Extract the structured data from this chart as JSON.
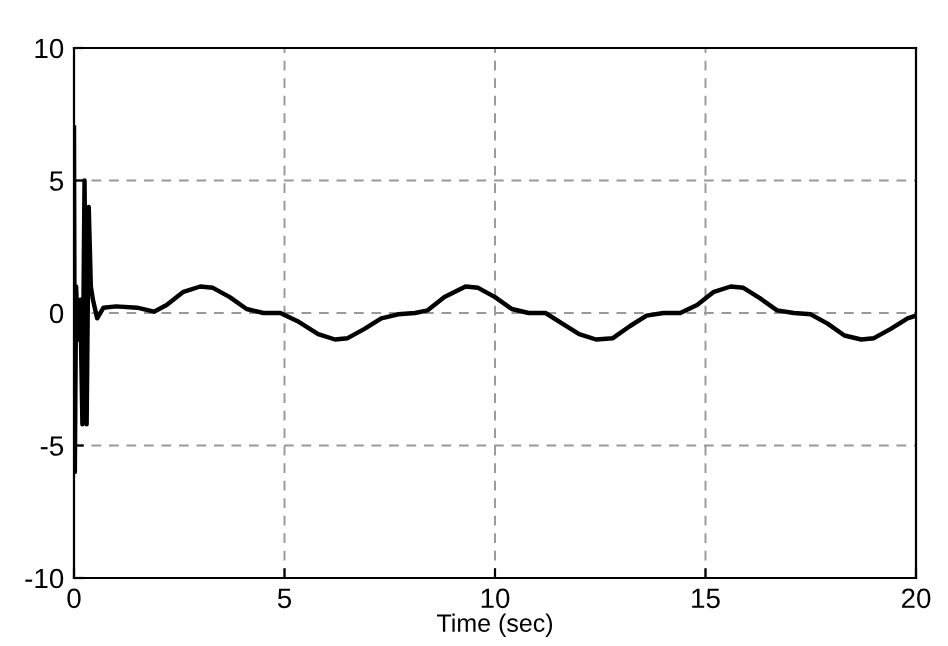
{
  "chart_data": {
    "type": "line",
    "xlabel": "Time (sec)",
    "xlim": [
      0,
      20
    ],
    "ylim": [
      -10,
      10
    ],
    "xticks": [
      0,
      5,
      10,
      15,
      20
    ],
    "yticks": [
      -10,
      -5,
      0,
      5,
      10
    ],
    "grid": true,
    "legend": false,
    "series": [
      {
        "color": "#000000",
        "x": [
          0,
          0.02,
          0.05,
          0.1,
          0.15,
          0.2,
          0.25,
          0.3,
          0.35,
          0.4,
          0.45,
          0.55,
          0.7,
          1.0,
          1.5,
          1.9,
          2.2,
          2.6,
          3.0,
          3.3,
          3.7,
          4.1,
          4.5,
          4.9,
          5.3,
          5.8,
          6.2,
          6.5,
          6.9,
          7.3,
          7.7,
          8.1,
          8.4,
          8.8,
          9.3,
          9.6,
          10.0,
          10.4,
          10.8,
          11.2,
          11.6,
          12.0,
          12.4,
          12.8,
          13.2,
          13.6,
          14.0,
          14.4,
          14.8,
          15.2,
          15.6,
          15.9,
          16.3,
          16.7,
          17.1,
          17.5,
          17.9,
          18.3,
          18.7,
          19.0,
          19.4,
          19.8,
          20
        ],
        "values": [
          7,
          -6,
          1,
          -1,
          0.5,
          -4.2,
          5,
          -4.2,
          4,
          1,
          0.5,
          -0.2,
          0.2,
          0.25,
          0.2,
          0.05,
          0.3,
          0.8,
          1.0,
          0.95,
          0.6,
          0.15,
          0,
          0,
          -0.3,
          -0.8,
          -1.0,
          -0.95,
          -0.6,
          -0.2,
          -0.05,
          0,
          0.1,
          0.6,
          1.0,
          0.95,
          0.6,
          0.15,
          0,
          0,
          -0.4,
          -0.8,
          -1.0,
          -0.95,
          -0.5,
          -0.1,
          0,
          0,
          0.3,
          0.8,
          1.0,
          0.95,
          0.55,
          0.1,
          0,
          -0.05,
          -0.4,
          -0.85,
          -1.0,
          -0.95,
          -0.6,
          -0.2,
          -0.1
        ]
      }
    ]
  }
}
